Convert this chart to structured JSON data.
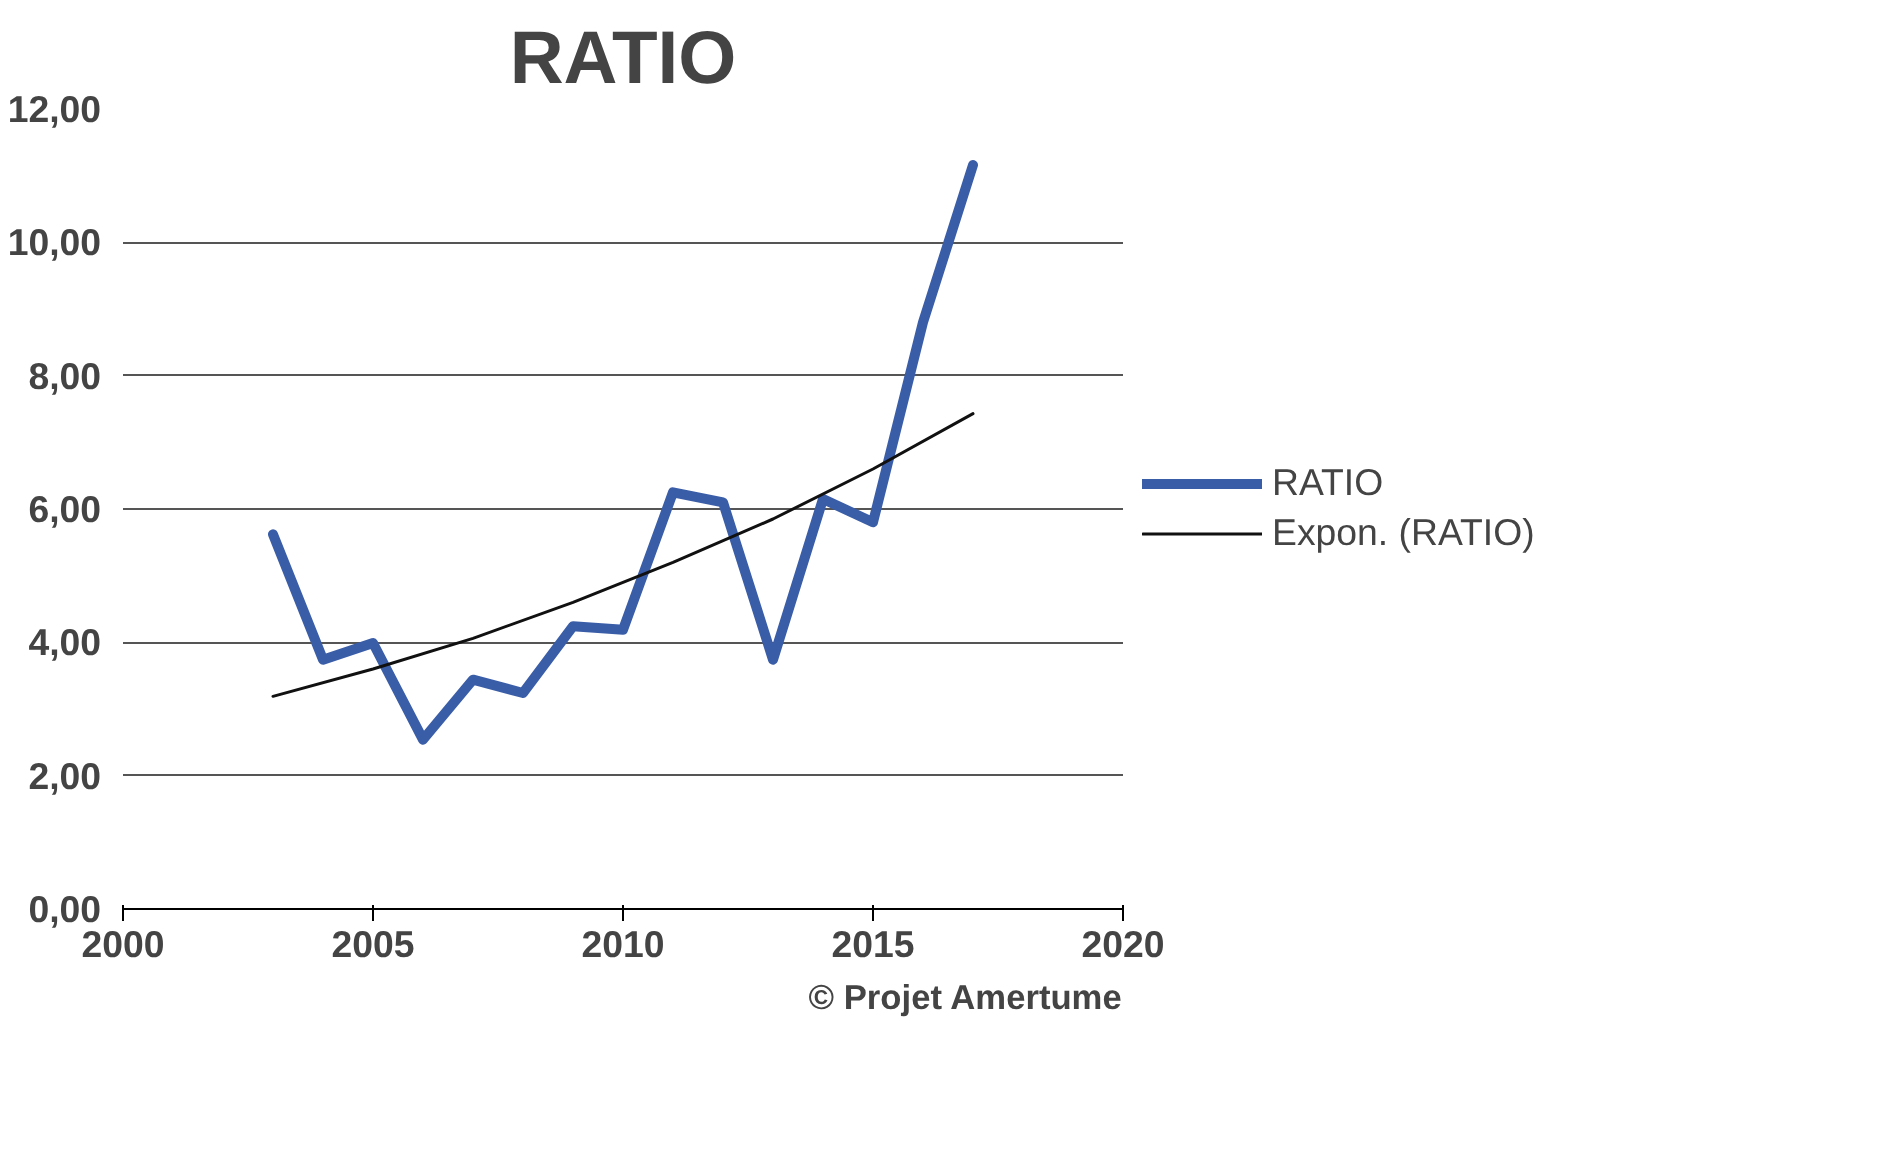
{
  "chart_data": {
    "type": "line",
    "title": "RATIO",
    "xlim": [
      2000,
      2020
    ],
    "xticks": [
      2000,
      2005,
      2010,
      2015,
      2020
    ],
    "ylim": [
      0,
      12
    ],
    "yticks": [
      {
        "value": 0,
        "label": "0,00"
      },
      {
        "value": 2,
        "label": "2,00"
      },
      {
        "value": 4,
        "label": "4,00"
      },
      {
        "value": 6,
        "label": "6,00"
      },
      {
        "value": 8,
        "label": "8,00"
      },
      {
        "value": 10,
        "label": "10,00"
      },
      {
        "value": 12,
        "label": "12,00"
      }
    ],
    "grid": "y",
    "legend": "right",
    "line_style": "solid",
    "annotations": [
      "© Projet Amertume"
    ],
    "series": [
      {
        "name": "RATIO",
        "color": "#3a5da8",
        "x": [
          2003,
          2004,
          2005,
          2006,
          2007,
          2008,
          2009,
          2010,
          2011,
          2012,
          2013,
          2014,
          2015,
          2016,
          2017
        ],
        "values": [
          5.62,
          3.74,
          3.99,
          2.54,
          3.44,
          3.24,
          4.24,
          4.19,
          6.25,
          6.1,
          3.74,
          6.15,
          5.8,
          8.8,
          11.16
        ]
      },
      {
        "name": "Expon. (RATIO)",
        "color": "#111111",
        "x": [
          2003,
          2005,
          2007,
          2009,
          2011,
          2013,
          2015,
          2017
        ],
        "values": [
          3.19,
          3.6,
          4.06,
          4.6,
          5.2,
          5.85,
          6.6,
          7.43
        ]
      }
    ]
  }
}
